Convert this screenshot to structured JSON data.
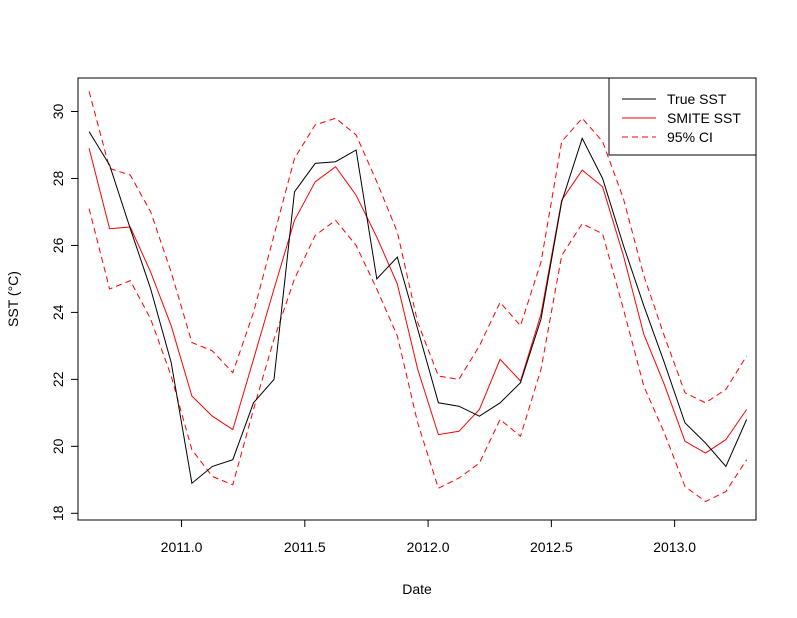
{
  "chart_data": {
    "type": "line",
    "title": "",
    "xlabel": "Date",
    "ylabel": "SST (°C)",
    "xlim": [
      2010.58,
      2013.33
    ],
    "ylim": [
      17.8,
      31.0
    ],
    "x_ticks": [
      2011.0,
      2011.5,
      2012.0,
      2012.5,
      2013.0
    ],
    "x_tick_labels": [
      "2011.0",
      "2011.5",
      "2012.0",
      "2012.5",
      "2013.0"
    ],
    "y_ticks": [
      18,
      20,
      22,
      24,
      26,
      28,
      30
    ],
    "y_tick_labels": [
      "18",
      "20",
      "22",
      "24",
      "26",
      "28",
      "30"
    ],
    "legend_position": "top-right",
    "legend": [
      "True SST",
      "SMITE SST",
      "95% CI"
    ],
    "x": [
      2010.625,
      2010.708,
      2010.792,
      2010.875,
      2010.958,
      2011.042,
      2011.125,
      2011.208,
      2011.292,
      2011.375,
      2011.458,
      2011.542,
      2011.625,
      2011.708,
      2011.792,
      2011.875,
      2011.958,
      2012.042,
      2012.125,
      2012.208,
      2012.292,
      2012.375,
      2012.458,
      2012.542,
      2012.625,
      2012.708,
      2012.792,
      2012.875,
      2012.958,
      2013.042,
      2013.125,
      2013.208,
      2013.292
    ],
    "series": [
      {
        "name": "True SST",
        "color": "#000000",
        "dash": "solid",
        "values": [
          29.4,
          28.4,
          26.5,
          24.7,
          22.5,
          18.9,
          19.4,
          19.6,
          21.3,
          22.0,
          27.6,
          28.45,
          28.5,
          28.85,
          25.0,
          25.65,
          23.5,
          21.3,
          21.2,
          20.9,
          21.3,
          21.9,
          23.8,
          27.3,
          29.2,
          28.0,
          26.0,
          24.2,
          22.5,
          20.7,
          20.1,
          19.4,
          20.8
        ]
      },
      {
        "name": "SMITE SST",
        "color": "#ff0000",
        "dash": "solid",
        "values": [
          28.9,
          26.5,
          26.55,
          25.2,
          23.6,
          21.5,
          20.9,
          20.5,
          22.6,
          24.7,
          26.75,
          27.9,
          28.35,
          27.5,
          26.25,
          24.85,
          22.3,
          20.35,
          20.45,
          21.1,
          22.6,
          21.95,
          23.95,
          27.35,
          28.25,
          27.75,
          25.7,
          23.35,
          21.85,
          20.15,
          19.8,
          20.2,
          21.1
        ]
      },
      {
        "name": "95% CI",
        "color": "#ff0000",
        "dash": "dashed",
        "values": [
          30.6,
          28.3,
          28.1,
          27.0,
          25.2,
          23.1,
          22.85,
          22.2,
          24.0,
          26.3,
          28.6,
          29.6,
          29.8,
          29.3,
          27.9,
          26.4,
          23.7,
          22.1,
          22.0,
          23.0,
          24.3,
          23.6,
          25.5,
          29.1,
          29.8,
          29.1,
          27.4,
          25.1,
          23.3,
          21.6,
          21.3,
          21.7,
          22.7
        ]
      },
      {
        "name": "95% CI",
        "color": "#ff0000",
        "dash": "dashed",
        "values": [
          27.1,
          24.7,
          24.95,
          23.8,
          22.1,
          19.9,
          19.1,
          18.85,
          21.1,
          23.2,
          25.0,
          26.3,
          26.75,
          26.0,
          24.7,
          23.3,
          20.7,
          18.75,
          19.05,
          19.5,
          20.8,
          20.3,
          22.3,
          25.7,
          26.65,
          26.35,
          24.1,
          21.8,
          20.4,
          18.8,
          18.35,
          18.65,
          19.6
        ]
      }
    ]
  }
}
